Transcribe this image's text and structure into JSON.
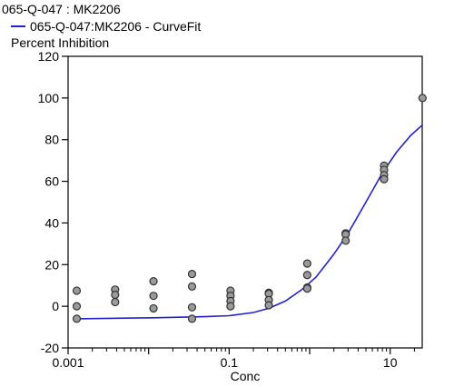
{
  "chart_data": {
    "type": "scatter",
    "title": "065-Q-047  : MK2206",
    "legend": [
      {
        "name": "065-Q-047:MK2206 - CurveFit",
        "color": "#2222cc"
      }
    ],
    "legend_placement": "top-left",
    "ylabel": "Percent Inhibition",
    "xlabel": "Conc",
    "x_scale": "log",
    "xlim": [
      0.001,
      25
    ],
    "ylim": [
      -20,
      120
    ],
    "x_ticks": [
      {
        "value": 0.001,
        "label": "0.001"
      },
      {
        "value": 0.1,
        "label": "0.1"
      },
      {
        "value": 10,
        "label": "10"
      }
    ],
    "y_ticks": [
      {
        "value": -20,
        "label": "-20"
      },
      {
        "value": 0,
        "label": "0"
      },
      {
        "value": 20,
        "label": "20"
      },
      {
        "value": 40,
        "label": "40"
      },
      {
        "value": 60,
        "label": "60"
      },
      {
        "value": 80,
        "label": "80"
      },
      {
        "value": 100,
        "label": "100"
      },
      {
        "value": 120,
        "label": "120"
      }
    ],
    "grid": false,
    "colors": {
      "points_fill": "#9a9a9a",
      "points_stroke": "#333333",
      "curve": "#2222cc"
    },
    "series": [
      {
        "kind": "points",
        "points": [
          {
            "x": 0.00128,
            "y": 7.5
          },
          {
            "x": 0.00128,
            "y": 0
          },
          {
            "x": 0.00128,
            "y": -6
          },
          {
            "x": 0.00384,
            "y": 8
          },
          {
            "x": 0.00384,
            "y": 5.5
          },
          {
            "x": 0.00384,
            "y": 2
          },
          {
            "x": 0.0115,
            "y": 12
          },
          {
            "x": 0.0115,
            "y": 5
          },
          {
            "x": 0.0115,
            "y": -1
          },
          {
            "x": 0.0346,
            "y": 15.5
          },
          {
            "x": 0.0346,
            "y": 9.5
          },
          {
            "x": 0.0346,
            "y": -0.5
          },
          {
            "x": 0.0346,
            "y": -6
          },
          {
            "x": 0.104,
            "y": 7.5
          },
          {
            "x": 0.104,
            "y": 5
          },
          {
            "x": 0.104,
            "y": 2.5
          },
          {
            "x": 0.104,
            "y": 0
          },
          {
            "x": 0.311,
            "y": 6.5
          },
          {
            "x": 0.311,
            "y": 6
          },
          {
            "x": 0.311,
            "y": 3
          },
          {
            "x": 0.311,
            "y": 0.5
          },
          {
            "x": 0.933,
            "y": 20.5
          },
          {
            "x": 0.933,
            "y": 15
          },
          {
            "x": 0.933,
            "y": 9
          },
          {
            "x": 0.933,
            "y": 8.5
          },
          {
            "x": 2.8,
            "y": 35
          },
          {
            "x": 2.8,
            "y": 34.5
          },
          {
            "x": 2.8,
            "y": 31.5
          },
          {
            "x": 8.4,
            "y": 67.5
          },
          {
            "x": 8.4,
            "y": 65.5
          },
          {
            "x": 8.4,
            "y": 63
          },
          {
            "x": 8.4,
            "y": 61
          },
          {
            "x": 25.2,
            "y": 100
          }
        ]
      },
      {
        "kind": "curve",
        "name": "065-Q-047:MK2206 - CurveFit",
        "points": [
          {
            "x": 0.00128,
            "y": -6
          },
          {
            "x": 0.0115,
            "y": -5.5
          },
          {
            "x": 0.05,
            "y": -5
          },
          {
            "x": 0.1,
            "y": -4.5
          },
          {
            "x": 0.2,
            "y": -3
          },
          {
            "x": 0.311,
            "y": -1
          },
          {
            "x": 0.5,
            "y": 2.5
          },
          {
            "x": 0.8,
            "y": 8
          },
          {
            "x": 1.2,
            "y": 14
          },
          {
            "x": 2,
            "y": 25
          },
          {
            "x": 3,
            "y": 35
          },
          {
            "x": 5,
            "y": 50
          },
          {
            "x": 8,
            "y": 64
          },
          {
            "x": 12,
            "y": 74
          },
          {
            "x": 18,
            "y": 82
          },
          {
            "x": 25,
            "y": 87
          }
        ]
      }
    ]
  }
}
